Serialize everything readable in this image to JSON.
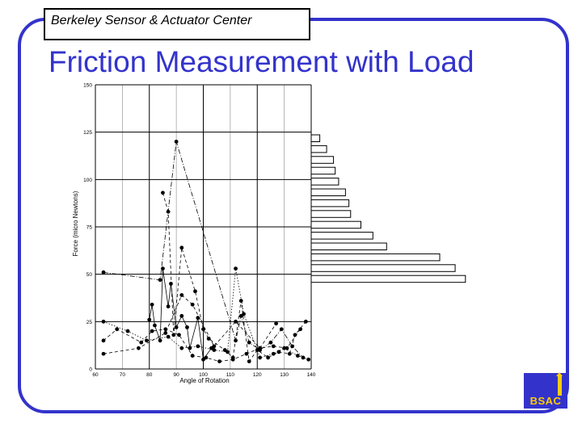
{
  "header": {
    "label": "Berkeley Sensor & Actuator Center"
  },
  "slide": {
    "title": "Friction Measurement with Load"
  },
  "logo": {
    "text": "BSAC"
  },
  "colors": {
    "accent": "#3333cc",
    "logo_bg": "#3333cc",
    "logo_text": "#ffcc00"
  },
  "chart_data": {
    "type": "scatter",
    "title": "",
    "xlabel": "Angle of Rotation",
    "ylabel": "Force (micro Newtons)",
    "xlim": [
      60,
      140
    ],
    "ylim": [
      0,
      150
    ],
    "x_ticks": [
      60,
      70,
      80,
      90,
      100,
      110,
      120,
      130,
      140
    ],
    "y_ticks": [
      0,
      25,
      50,
      75,
      100,
      125,
      150
    ],
    "grid": true,
    "series": [
      {
        "style": "dashed",
        "points": [
          [
            63,
            8
          ],
          [
            76,
            11
          ],
          [
            86,
            19
          ],
          [
            92,
            39
          ],
          [
            96,
            34
          ],
          [
            104,
            12
          ],
          [
            112,
            25
          ],
          [
            121,
            11
          ],
          [
            127,
            24
          ]
        ]
      },
      {
        "style": "dashed",
        "points": [
          [
            63,
            15
          ],
          [
            68,
            21
          ],
          [
            77,
            14
          ],
          [
            81,
            20
          ],
          [
            86,
            21
          ],
          [
            91,
            18
          ],
          [
            96,
            7
          ],
          [
            101,
            6
          ],
          [
            106,
            4
          ],
          [
            111,
            5
          ],
          [
            116,
            8
          ],
          [
            121,
            11
          ],
          [
            126,
            12
          ],
          [
            131,
            11
          ],
          [
            136,
            21
          ]
        ]
      },
      {
        "style": "solid",
        "points": [
          [
            80,
            26
          ],
          [
            81,
            34
          ],
          [
            82,
            23
          ],
          [
            84,
            15
          ],
          [
            85,
            53
          ],
          [
            87,
            33
          ],
          [
            88,
            45
          ],
          [
            90,
            22
          ],
          [
            92,
            28
          ],
          [
            94,
            22
          ],
          [
            95,
            11
          ],
          [
            98,
            27
          ],
          [
            100,
            5
          ],
          [
            103,
            11
          ]
        ]
      },
      {
        "style": "dashdot",
        "points": [
          [
            63,
            51
          ],
          [
            84,
            47
          ],
          [
            90,
            120
          ],
          [
            112,
            15
          ],
          [
            114,
            28
          ],
          [
            117,
            14
          ],
          [
            121,
            10
          ],
          [
            125,
            14
          ],
          [
            129,
            21
          ],
          [
            133,
            12
          ],
          [
            137,
            6
          ]
        ]
      },
      {
        "style": "dashed",
        "points": [
          [
            85,
            93
          ],
          [
            87,
            83
          ],
          [
            89,
            18
          ],
          [
            92,
            64
          ],
          [
            97,
            41
          ],
          [
            100,
            21
          ],
          [
            102,
            16
          ],
          [
            108,
            10
          ],
          [
            111,
            6
          ],
          [
            114,
            36
          ],
          [
            117,
            4
          ],
          [
            120,
            10
          ],
          [
            124,
            6
          ],
          [
            128,
            9
          ],
          [
            132,
            8
          ],
          [
            134,
            18
          ],
          [
            138,
            25
          ]
        ]
      },
      {
        "style": "dotted",
        "points": [
          [
            63,
            25
          ],
          [
            72,
            20
          ],
          [
            79,
            15
          ],
          [
            87,
            17
          ],
          [
            92,
            11
          ],
          [
            98,
            12
          ],
          [
            104,
            10
          ],
          [
            109,
            9
          ],
          [
            112,
            53
          ],
          [
            115,
            29
          ],
          [
            121,
            6
          ],
          [
            126,
            8
          ],
          [
            130,
            11
          ],
          [
            135,
            7
          ],
          [
            139,
            5
          ]
        ]
      }
    ],
    "bars": {
      "max_len": 100,
      "values": [
        5,
        9,
        13,
        14,
        16,
        20,
        22,
        23,
        29,
        36,
        44,
        75,
        84,
        90
      ]
    }
  }
}
